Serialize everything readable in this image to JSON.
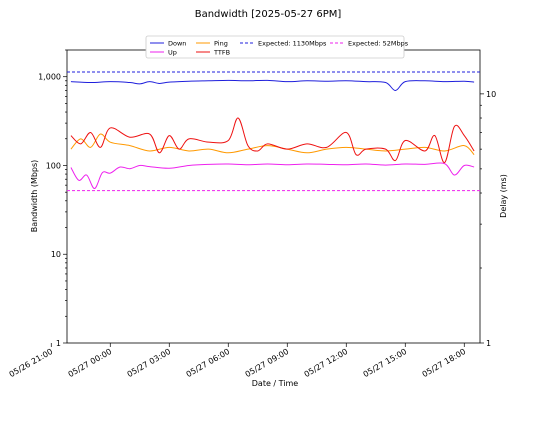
{
  "chart_data": {
    "type": "line",
    "title": "Bandwidth [2025-05-27 6PM]",
    "xlabel": "Date / Time",
    "ylabel": "Bandwidth (Mbps)",
    "y2label": "Delay (ms)",
    "x_ticks": [
      "05/26 21:00",
      "05/27 00:00",
      "05/27 03:00",
      "05/27 06:00",
      "05/27 09:00",
      "05/27 12:00",
      "05/27 15:00",
      "05/27 18:00"
    ],
    "y_ticks": [
      "1",
      "10",
      "100",
      "1,000"
    ],
    "y2_ticks": [
      "1",
      "10"
    ],
    "y_scale": "log",
    "ylim": [
      1,
      2000
    ],
    "y2_scale": "log",
    "y2lim": [
      1,
      15
    ],
    "x_hours": [
      -2.2,
      18.8
    ],
    "legend_position": "top-center",
    "series": [
      {
        "name": "Down",
        "axis": "left",
        "color": "#1f1fdc",
        "x": [
          -2.0,
          -1.0,
          0.0,
          1.0,
          1.5,
          2.0,
          2.5,
          3.0,
          4.0,
          5.0,
          6.0,
          7.0,
          8.0,
          9.0,
          10.0,
          11.0,
          12.0,
          13.0,
          14.0,
          14.5,
          15.0,
          16.0,
          17.0,
          18.0,
          18.5
        ],
        "y": [
          880,
          860,
          880,
          860,
          830,
          880,
          840,
          870,
          890,
          900,
          910,
          900,
          910,
          880,
          900,
          890,
          900,
          880,
          860,
          700,
          880,
          900,
          880,
          890,
          870
        ]
      },
      {
        "name": "Up",
        "axis": "left",
        "color": "#ee22ee",
        "x": [
          -2.0,
          -1.6,
          -1.2,
          -0.8,
          -0.4,
          0.0,
          0.5,
          1.0,
          1.5,
          2.0,
          3.0,
          4.0,
          5.0,
          6.0,
          7.0,
          8.0,
          9.0,
          10.0,
          11.0,
          12.0,
          13.0,
          14.0,
          15.0,
          16.0,
          17.0,
          17.5,
          18.0,
          18.5
        ],
        "y": [
          95,
          68,
          78,
          55,
          83,
          82,
          96,
          92,
          100,
          97,
          93,
          100,
          103,
          104,
          102,
          104,
          102,
          104,
          103,
          102,
          104,
          101,
          104,
          103,
          105,
          78,
          100,
          96
        ]
      },
      {
        "name": "Ping",
        "axis": "right",
        "color": "#ff9900",
        "x": [
          -2.0,
          -1.5,
          -1.0,
          -0.5,
          0.0,
          1.0,
          2.0,
          3.0,
          4.0,
          5.0,
          6.0,
          7.0,
          8.0,
          9.0,
          10.0,
          11.0,
          12.0,
          13.0,
          14.0,
          15.0,
          16.0,
          17.0,
          18.0,
          18.5
        ],
        "y": [
          6.0,
          6.6,
          6.1,
          6.9,
          6.4,
          6.2,
          5.9,
          6.1,
          5.9,
          6.0,
          5.8,
          6.0,
          6.2,
          6.0,
          5.8,
          6.0,
          6.1,
          6.0,
          5.9,
          6.0,
          6.1,
          5.9,
          6.2,
          5.7
        ]
      },
      {
        "name": "TTFB",
        "axis": "right",
        "color": "#ee1111",
        "x": [
          -2.0,
          -1.5,
          -1.0,
          -0.5,
          0.0,
          1.0,
          2.0,
          2.5,
          3.0,
          3.5,
          4.0,
          5.0,
          6.0,
          6.5,
          7.0,
          7.5,
          8.0,
          9.0,
          10.0,
          11.0,
          12.0,
          12.5,
          13.0,
          14.0,
          14.5,
          15.0,
          16.0,
          16.5,
          17.0,
          17.5,
          18.0,
          18.5
        ],
        "y": [
          6.8,
          6.3,
          7.0,
          6.1,
          7.3,
          6.7,
          6.9,
          5.8,
          6.8,
          6.0,
          6.6,
          6.4,
          6.5,
          8.0,
          6.2,
          5.9,
          6.3,
          6.0,
          6.3,
          6.1,
          7.0,
          5.7,
          6.0,
          6.0,
          5.4,
          6.5,
          5.9,
          6.8,
          5.3,
          7.4,
          6.8,
          5.9
        ]
      }
    ],
    "reference_lines": [
      {
        "name": "Expected: 1130Mbps",
        "value": 1130,
        "color": "#1f1fdc",
        "style": "dashed"
      },
      {
        "name": "Expected: 52Mbps",
        "value": 52,
        "color": "#ee22ee",
        "style": "dashed"
      }
    ]
  }
}
